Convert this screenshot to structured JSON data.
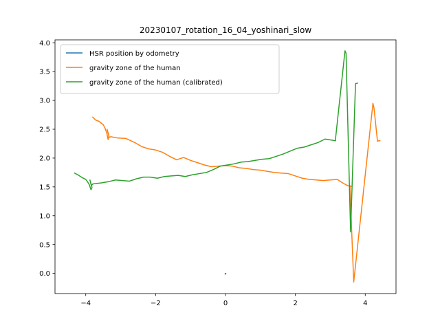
{
  "chart_data": {
    "type": "line",
    "title": "20230107_rotation_16_04_yoshinari_slow",
    "xlabel": "",
    "ylabel": "",
    "xlim": [
      -4.88,
      4.88
    ],
    "ylim": [
      -0.35,
      4.05
    ],
    "xticks": [
      {
        "value": -4,
        "label": "−4"
      },
      {
        "value": -2,
        "label": "−2"
      },
      {
        "value": 0,
        "label": "0"
      },
      {
        "value": 2,
        "label": "2"
      },
      {
        "value": 4,
        "label": "4"
      }
    ],
    "yticks": [
      {
        "value": 0.0,
        "label": "0.0"
      },
      {
        "value": 0.5,
        "label": "0.5"
      },
      {
        "value": 1.0,
        "label": "1.0"
      },
      {
        "value": 1.5,
        "label": "1.5"
      },
      {
        "value": 2.0,
        "label": "2.0"
      },
      {
        "value": 2.5,
        "label": "2.5"
      },
      {
        "value": 3.0,
        "label": "3.0"
      },
      {
        "value": 3.5,
        "label": "3.5"
      },
      {
        "value": 4.0,
        "label": "4.0"
      }
    ],
    "grid": false,
    "legend_position": "top-left",
    "series": [
      {
        "name": "HSR position by odometry",
        "color": "#1f77b4",
        "points": [
          [
            -0.01,
            -0.01
          ],
          [
            0.0,
            0.0
          ],
          [
            0.01,
            0.0
          ],
          [
            0.0,
            -0.01
          ]
        ]
      },
      {
        "name": "gravity zone of the human",
        "color": "#ff7f0e",
        "points": [
          [
            -3.8,
            2.71
          ],
          [
            -3.72,
            2.66
          ],
          [
            -3.63,
            2.64
          ],
          [
            -3.5,
            2.58
          ],
          [
            -3.45,
            2.52
          ],
          [
            -3.4,
            2.44
          ],
          [
            -3.36,
            2.32
          ],
          [
            -3.34,
            2.38
          ],
          [
            -3.39,
            2.5
          ],
          [
            -3.35,
            2.42
          ],
          [
            -3.33,
            2.36
          ],
          [
            -3.28,
            2.37
          ],
          [
            -3.1,
            2.35
          ],
          [
            -2.85,
            2.34
          ],
          [
            -2.6,
            2.27
          ],
          [
            -2.4,
            2.2
          ],
          [
            -2.2,
            2.16
          ],
          [
            -2.0,
            2.14
          ],
          [
            -1.8,
            2.1
          ],
          [
            -1.6,
            2.03
          ],
          [
            -1.4,
            1.97
          ],
          [
            -1.2,
            2.01
          ],
          [
            -1.0,
            1.96
          ],
          [
            -0.8,
            1.92
          ],
          [
            -0.6,
            1.88
          ],
          [
            -0.4,
            1.85
          ],
          [
            -0.2,
            1.86
          ],
          [
            0.0,
            1.87
          ],
          [
            0.2,
            1.86
          ],
          [
            0.4,
            1.83
          ],
          [
            0.6,
            1.82
          ],
          [
            0.8,
            1.8
          ],
          [
            1.0,
            1.79
          ],
          [
            1.2,
            1.77
          ],
          [
            1.4,
            1.75
          ],
          [
            1.6,
            1.74
          ],
          [
            1.8,
            1.73
          ],
          [
            2.0,
            1.69
          ],
          [
            2.2,
            1.65
          ],
          [
            2.4,
            1.63
          ],
          [
            2.6,
            1.62
          ],
          [
            2.8,
            1.61
          ],
          [
            3.0,
            1.62
          ],
          [
            3.2,
            1.63
          ],
          [
            3.35,
            1.57
          ],
          [
            3.5,
            1.52
          ],
          [
            3.6,
            1.51
          ],
          [
            3.56,
            1.52
          ],
          [
            3.67,
            -0.15
          ],
          [
            4.22,
            2.95
          ],
          [
            4.25,
            2.87
          ],
          [
            4.35,
            2.29
          ],
          [
            4.38,
            2.3
          ],
          [
            4.42,
            2.3
          ]
        ]
      },
      {
        "name": "gravity zone of the human (calibrated)",
        "color": "#2ca02c",
        "points": [
          [
            -4.32,
            1.74
          ],
          [
            -4.2,
            1.7
          ],
          [
            -4.1,
            1.66
          ],
          [
            -4.0,
            1.63
          ],
          [
            -3.95,
            1.59
          ],
          [
            -3.9,
            1.54
          ],
          [
            -3.85,
            1.45
          ],
          [
            -3.82,
            1.49
          ],
          [
            -3.88,
            1.62
          ],
          [
            -3.84,
            1.52
          ],
          [
            -3.8,
            1.55
          ],
          [
            -3.7,
            1.56
          ],
          [
            -3.55,
            1.57
          ],
          [
            -3.35,
            1.59
          ],
          [
            -3.15,
            1.62
          ],
          [
            -2.95,
            1.61
          ],
          [
            -2.75,
            1.6
          ],
          [
            -2.55,
            1.64
          ],
          [
            -2.35,
            1.67
          ],
          [
            -2.15,
            1.67
          ],
          [
            -1.95,
            1.65
          ],
          [
            -1.75,
            1.68
          ],
          [
            -1.55,
            1.69
          ],
          [
            -1.35,
            1.7
          ],
          [
            -1.15,
            1.68
          ],
          [
            -0.95,
            1.71
          ],
          [
            -0.75,
            1.73
          ],
          [
            -0.55,
            1.75
          ],
          [
            -0.35,
            1.8
          ],
          [
            -0.15,
            1.86
          ],
          [
            0.05,
            1.88
          ],
          [
            0.25,
            1.9
          ],
          [
            0.45,
            1.93
          ],
          [
            0.65,
            1.94
          ],
          [
            0.85,
            1.96
          ],
          [
            1.05,
            1.98
          ],
          [
            1.25,
            1.99
          ],
          [
            1.45,
            2.03
          ],
          [
            1.65,
            2.07
          ],
          [
            1.85,
            2.12
          ],
          [
            2.05,
            2.17
          ],
          [
            2.25,
            2.19
          ],
          [
            2.45,
            2.23
          ],
          [
            2.65,
            2.27
          ],
          [
            2.85,
            2.33
          ],
          [
            3.05,
            2.31
          ],
          [
            3.15,
            2.3
          ],
          [
            3.15,
            2.34
          ],
          [
            3.42,
            3.86
          ],
          [
            3.45,
            3.82
          ],
          [
            3.58,
            0.72
          ],
          [
            3.72,
            3.27
          ],
          [
            3.72,
            3.29
          ],
          [
            3.78,
            3.3
          ]
        ]
      }
    ]
  }
}
